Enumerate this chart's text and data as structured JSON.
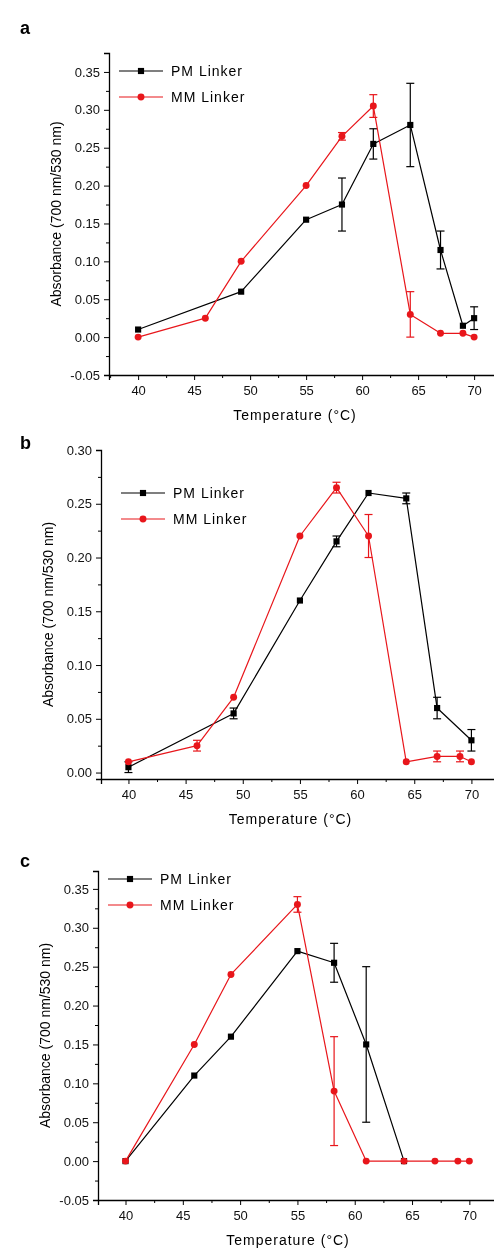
{
  "chart_data": [
    {
      "type": "line",
      "title": "a",
      "xlabel": "Temperature (°C)",
      "ylabel": "Absorbance (700 nm/530 nm)",
      "x": [
        40,
        46,
        49.2,
        55,
        58.2,
        61,
        64.3,
        67,
        69,
        70
      ],
      "xlim": [
        37.4,
        72.4
      ],
      "xticks": [
        40,
        45,
        50,
        55,
        60,
        65,
        70
      ],
      "ylim": [
        -0.05,
        0.375
      ],
      "yticks": [
        {
          "value": -0.05,
          "label": "-0.05"
        },
        {
          "value": 0,
          "label": "0.00"
        },
        {
          "value": 0.05,
          "label": "0.05"
        },
        {
          "value": 0.1,
          "label": "0.10"
        },
        {
          "value": 0.15,
          "label": "0.15"
        },
        {
          "value": 0.2,
          "label": "0.20"
        },
        {
          "value": 0.25,
          "label": "0.25"
        },
        {
          "value": 0.3,
          "label": "0.30"
        },
        {
          "value": 0.35,
          "label": "0.35"
        }
      ],
      "legend": "top left",
      "grid": false,
      "series": [
        {
          "name": "PM Linker",
          "color": "#000000",
          "marker": "square",
          "values": [
            0.01,
            null,
            0.06,
            0.155,
            0.175,
            0.255,
            0.28,
            0.115,
            0.015,
            0.025
          ],
          "errors": [
            null,
            null,
            null,
            null,
            0.035,
            0.02,
            0.055,
            0.025,
            null,
            0.015
          ]
        },
        {
          "name": "MM Linker",
          "color": "#e8161b",
          "marker": "circle",
          "values": [
            0,
            0.025,
            0.1,
            0.2,
            0.265,
            0.305,
            0.03,
            0.005,
            0.005,
            0
          ],
          "errors": [
            null,
            null,
            null,
            null,
            0.005,
            0.015,
            0.03,
            null,
            null,
            null
          ]
        }
      ]
    },
    {
      "type": "line",
      "title": "b",
      "xlabel": "Temperature (°C)",
      "ylabel": "Absorbance (700 nm/530 nm)",
      "x": [
        40,
        46,
        49.2,
        55,
        58.2,
        61,
        64.3,
        67,
        69,
        70
      ],
      "xlim": [
        37.6,
        72.5
      ],
      "xticks": [
        40,
        45,
        50,
        55,
        60,
        65,
        70
      ],
      "ylim": [
        -0.006,
        0.3
      ],
      "yticks": [
        {
          "value": 0,
          "label": "0.00"
        },
        {
          "value": 0.05,
          "label": "0.05"
        },
        {
          "value": 0.1,
          "label": "0.10"
        },
        {
          "value": 0.15,
          "label": "0.15"
        },
        {
          "value": 0.2,
          "label": "0.20"
        },
        {
          "value": 0.25,
          "label": "0.25"
        },
        {
          "value": 0.3,
          "label": "0.30"
        }
      ],
      "legend": "top left",
      "grid": false,
      "series": [
        {
          "name": "PM Linker",
          "color": "#000000",
          "marker": "square",
          "values": [
            0.005,
            null,
            0.055,
            0.16,
            0.215,
            0.26,
            0.255,
            0.06,
            null,
            0.03
          ],
          "errors": [
            0.005,
            null,
            0.005,
            null,
            0.005,
            null,
            0.005,
            0.01,
            null,
            0.01
          ]
        },
        {
          "name": "MM Linker",
          "color": "#e8161b",
          "marker": "circle",
          "values": [
            0.01,
            0.025,
            0.07,
            0.22,
            0.265,
            0.22,
            0.01,
            0.015,
            0.015,
            0.01
          ],
          "errors": [
            null,
            0.005,
            null,
            null,
            0.005,
            0.02,
            null,
            0.005,
            0.005,
            null
          ]
        }
      ]
    },
    {
      "type": "line",
      "title": "c",
      "xlabel": "Temperature (°C)",
      "ylabel": "Absorbance (700 nm/530 nm)",
      "x": [
        40,
        46,
        49.2,
        55,
        58.2,
        61,
        64.3,
        67,
        69,
        70
      ],
      "xlim": [
        37.6,
        72.5
      ],
      "xticks": [
        40,
        45,
        50,
        55,
        60,
        65,
        70
      ],
      "ylim": [
        -0.05,
        0.373
      ],
      "yticks": [
        {
          "value": -0.05,
          "label": "-0.05"
        },
        {
          "value": 0,
          "label": "0.00"
        },
        {
          "value": 0.05,
          "label": "0.05"
        },
        {
          "value": 0.1,
          "label": "0.10"
        },
        {
          "value": 0.15,
          "label": "0.15"
        },
        {
          "value": 0.2,
          "label": "0.20"
        },
        {
          "value": 0.25,
          "label": "0.25"
        },
        {
          "value": 0.3,
          "label": "0.30"
        },
        {
          "value": 0.35,
          "label": "0.35"
        }
      ],
      "legend": "top left",
      "grid": false,
      "series": [
        {
          "name": "PM Linker",
          "color": "#000000",
          "marker": "square",
          "values": [
            0,
            0.11,
            0.16,
            0.27,
            0.255,
            0.15,
            0,
            null,
            null,
            null
          ],
          "errors": [
            null,
            null,
            null,
            null,
            0.025,
            0.1,
            null,
            null,
            null,
            null
          ]
        },
        {
          "name": "MM Linker",
          "color": "#e8161b",
          "marker": "circle",
          "values": [
            0,
            0.15,
            0.24,
            0.33,
            0.09,
            0,
            0,
            0,
            0,
            0
          ],
          "errors": [
            null,
            null,
            null,
            0.01,
            0.07,
            null,
            null,
            null,
            null,
            null
          ]
        }
      ]
    }
  ]
}
